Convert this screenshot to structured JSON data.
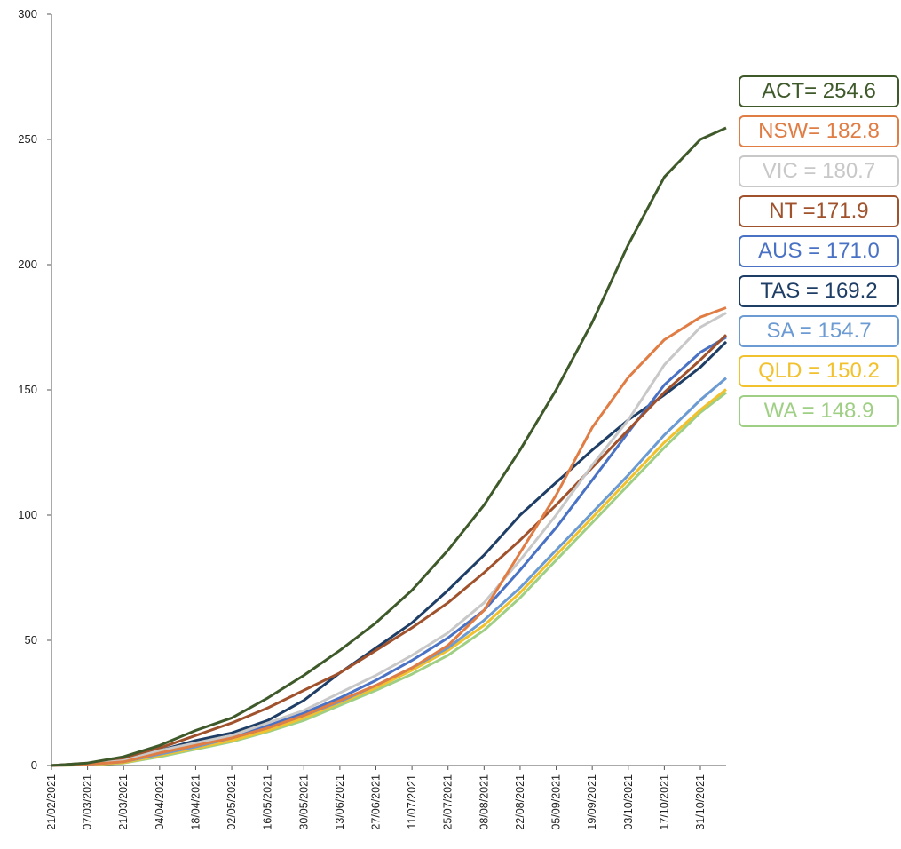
{
  "chart_data": {
    "type": "line",
    "title": "",
    "xlabel": "",
    "ylabel": "",
    "ylim": [
      0,
      300
    ],
    "yticks": [
      "0",
      "50",
      "100",
      "150",
      "200",
      "250",
      "300"
    ],
    "xticks": [
      "21/02/2021",
      "07/03/2021",
      "21/03/2021",
      "04/04/2021",
      "18/04/2021",
      "02/05/2021",
      "16/05/2021",
      "30/05/2021",
      "13/06/2021",
      "27/06/2021",
      "11/07/2021",
      "25/07/2021",
      "08/08/2021",
      "22/08/2021",
      "05/09/2021",
      "19/09/2021",
      "03/10/2021",
      "17/10/2021",
      "31/10/2021"
    ],
    "x_end": "10/11/2021",
    "series": [
      {
        "name": "ACT",
        "label": "ACT= 254.6",
        "color": "#3f5a2a",
        "width": 3,
        "points": [
          [
            "21/02/2021",
            0
          ],
          [
            "07/03/2021",
            1
          ],
          [
            "21/03/2021",
            3.5
          ],
          [
            "04/04/2021",
            8
          ],
          [
            "18/04/2021",
            14
          ],
          [
            "02/05/2021",
            19
          ],
          [
            "16/05/2021",
            27
          ],
          [
            "30/05/2021",
            36
          ],
          [
            "13/06/2021",
            46
          ],
          [
            "27/06/2021",
            57
          ],
          [
            "11/07/2021",
            70
          ],
          [
            "25/07/2021",
            86
          ],
          [
            "08/08/2021",
            104
          ],
          [
            "22/08/2021",
            126
          ],
          [
            "05/09/2021",
            150
          ],
          [
            "19/09/2021",
            177
          ],
          [
            "03/10/2021",
            208
          ],
          [
            "17/10/2021",
            235
          ],
          [
            "31/10/2021",
            250
          ],
          [
            "10/11/2021",
            254.6
          ]
        ]
      },
      {
        "name": "NSW",
        "label": "NSW= 182.8",
        "color": "#e07d45",
        "width": 3,
        "points": [
          [
            "21/02/2021",
            0
          ],
          [
            "07/03/2021",
            0.5
          ],
          [
            "21/03/2021",
            1.5
          ],
          [
            "04/04/2021",
            5
          ],
          [
            "18/04/2021",
            8
          ],
          [
            "02/05/2021",
            11
          ],
          [
            "16/05/2021",
            15
          ],
          [
            "30/05/2021",
            20
          ],
          [
            "13/06/2021",
            26
          ],
          [
            "27/06/2021",
            32
          ],
          [
            "11/07/2021",
            39
          ],
          [
            "25/07/2021",
            48
          ],
          [
            "08/08/2021",
            62
          ],
          [
            "22/08/2021",
            85
          ],
          [
            "05/09/2021",
            108
          ],
          [
            "19/09/2021",
            135
          ],
          [
            "03/10/2021",
            155
          ],
          [
            "17/10/2021",
            170
          ],
          [
            "31/10/2021",
            179
          ],
          [
            "10/11/2021",
            182.8
          ]
        ]
      },
      {
        "name": "VIC",
        "label": "VIC = 180.7",
        "color": "#c8c8c8",
        "width": 3,
        "points": [
          [
            "21/02/2021",
            0
          ],
          [
            "07/03/2021",
            0.5
          ],
          [
            "21/03/2021",
            2
          ],
          [
            "04/04/2021",
            6
          ],
          [
            "18/04/2021",
            9
          ],
          [
            "02/05/2021",
            12
          ],
          [
            "16/05/2021",
            17
          ],
          [
            "30/05/2021",
            22
          ],
          [
            "13/06/2021",
            29
          ],
          [
            "27/06/2021",
            36
          ],
          [
            "11/07/2021",
            44
          ],
          [
            "25/07/2021",
            53
          ],
          [
            "08/08/2021",
            65
          ],
          [
            "22/08/2021",
            82
          ],
          [
            "05/09/2021",
            100
          ],
          [
            "19/09/2021",
            120
          ],
          [
            "03/10/2021",
            138
          ],
          [
            "17/10/2021",
            160
          ],
          [
            "31/10/2021",
            175
          ],
          [
            "10/11/2021",
            180.7
          ]
        ]
      },
      {
        "name": "NT",
        "label": "NT =171.9",
        "color": "#a0522d",
        "width": 3,
        "points": [
          [
            "21/02/2021",
            0
          ],
          [
            "07/03/2021",
            1
          ],
          [
            "21/03/2021",
            3
          ],
          [
            "04/04/2021",
            7
          ],
          [
            "18/04/2021",
            12
          ],
          [
            "02/05/2021",
            17
          ],
          [
            "16/05/2021",
            23
          ],
          [
            "30/05/2021",
            30
          ],
          [
            "13/06/2021",
            37
          ],
          [
            "27/06/2021",
            46
          ],
          [
            "11/07/2021",
            55
          ],
          [
            "25/07/2021",
            65
          ],
          [
            "08/08/2021",
            77
          ],
          [
            "22/08/2021",
            90
          ],
          [
            "05/09/2021",
            104
          ],
          [
            "19/09/2021",
            119
          ],
          [
            "03/10/2021",
            134
          ],
          [
            "17/10/2021",
            149
          ],
          [
            "31/10/2021",
            162
          ],
          [
            "10/11/2021",
            171.9
          ]
        ]
      },
      {
        "name": "AUS",
        "label": "AUS = 171.0",
        "color": "#4a72c4",
        "width": 3,
        "points": [
          [
            "21/02/2021",
            0
          ],
          [
            "07/03/2021",
            0.5
          ],
          [
            "21/03/2021",
            1.8
          ],
          [
            "04/04/2021",
            5
          ],
          [
            "18/04/2021",
            8.5
          ],
          [
            "02/05/2021",
            12
          ],
          [
            "16/05/2021",
            16
          ],
          [
            "30/05/2021",
            21
          ],
          [
            "13/06/2021",
            27
          ],
          [
            "27/06/2021",
            34
          ],
          [
            "11/07/2021",
            42
          ],
          [
            "25/07/2021",
            51
          ],
          [
            "08/08/2021",
            62
          ],
          [
            "22/08/2021",
            78
          ],
          [
            "05/09/2021",
            95
          ],
          [
            "19/09/2021",
            114
          ],
          [
            "03/10/2021",
            133
          ],
          [
            "17/10/2021",
            152
          ],
          [
            "31/10/2021",
            165
          ],
          [
            "10/11/2021",
            171
          ]
        ]
      },
      {
        "name": "TAS",
        "label": "TAS = 169.2",
        "color": "#1f3e66",
        "width": 3,
        "points": [
          [
            "21/02/2021",
            0
          ],
          [
            "07/03/2021",
            0.8
          ],
          [
            "21/03/2021",
            2.5
          ],
          [
            "04/04/2021",
            6
          ],
          [
            "18/04/2021",
            10
          ],
          [
            "02/05/2021",
            13
          ],
          [
            "16/05/2021",
            18
          ],
          [
            "30/05/2021",
            26
          ],
          [
            "13/06/2021",
            37
          ],
          [
            "27/06/2021",
            47
          ],
          [
            "11/07/2021",
            57
          ],
          [
            "25/07/2021",
            70
          ],
          [
            "08/08/2021",
            84
          ],
          [
            "22/08/2021",
            100
          ],
          [
            "05/09/2021",
            113
          ],
          [
            "19/09/2021",
            126
          ],
          [
            "03/10/2021",
            138
          ],
          [
            "17/10/2021",
            148
          ],
          [
            "31/10/2021",
            159
          ],
          [
            "10/11/2021",
            169.2
          ]
        ]
      },
      {
        "name": "SA",
        "label": "SA = 154.7",
        "color": "#6b9bd2",
        "width": 3,
        "points": [
          [
            "21/02/2021",
            0
          ],
          [
            "07/03/2021",
            0.4
          ],
          [
            "21/03/2021",
            1.5
          ],
          [
            "04/04/2021",
            4.5
          ],
          [
            "18/04/2021",
            7.5
          ],
          [
            "02/05/2021",
            11
          ],
          [
            "16/05/2021",
            15
          ],
          [
            "30/05/2021",
            20
          ],
          [
            "13/06/2021",
            25.5
          ],
          [
            "27/06/2021",
            32
          ],
          [
            "11/07/2021",
            39
          ],
          [
            "25/07/2021",
            47
          ],
          [
            "08/08/2021",
            58
          ],
          [
            "22/08/2021",
            71
          ],
          [
            "05/09/2021",
            86
          ],
          [
            "19/09/2021",
            101
          ],
          [
            "03/10/2021",
            116
          ],
          [
            "17/10/2021",
            132
          ],
          [
            "31/10/2021",
            146
          ],
          [
            "10/11/2021",
            154.7
          ]
        ]
      },
      {
        "name": "QLD",
        "label": "QLD = 150.2",
        "color": "#f2c12e",
        "width": 3,
        "points": [
          [
            "21/02/2021",
            0
          ],
          [
            "07/03/2021",
            0.3
          ],
          [
            "21/03/2021",
            1.2
          ],
          [
            "04/04/2021",
            4
          ],
          [
            "18/04/2021",
            7
          ],
          [
            "02/05/2021",
            10
          ],
          [
            "16/05/2021",
            14
          ],
          [
            "30/05/2021",
            19
          ],
          [
            "13/06/2021",
            25
          ],
          [
            "27/06/2021",
            31
          ],
          [
            "11/07/2021",
            38
          ],
          [
            "25/07/2021",
            46
          ],
          [
            "08/08/2021",
            56
          ],
          [
            "22/08/2021",
            69
          ],
          [
            "05/09/2021",
            84
          ],
          [
            "19/09/2021",
            99
          ],
          [
            "03/10/2021",
            114
          ],
          [
            "17/10/2021",
            129
          ],
          [
            "31/10/2021",
            142
          ],
          [
            "10/11/2021",
            150.2
          ]
        ]
      },
      {
        "name": "WA",
        "label": "WA = 148.9",
        "color": "#9fcf84",
        "width": 3,
        "points": [
          [
            "21/02/2021",
            0
          ],
          [
            "07/03/2021",
            0.3
          ],
          [
            "21/03/2021",
            1
          ],
          [
            "04/04/2021",
            3.5
          ],
          [
            "18/04/2021",
            6.5
          ],
          [
            "02/05/2021",
            9.5
          ],
          [
            "16/05/2021",
            13.5
          ],
          [
            "30/05/2021",
            18
          ],
          [
            "13/06/2021",
            24
          ],
          [
            "27/06/2021",
            30
          ],
          [
            "11/07/2021",
            36.5
          ],
          [
            "25/07/2021",
            44
          ],
          [
            "08/08/2021",
            54
          ],
          [
            "22/08/2021",
            67
          ],
          [
            "05/09/2021",
            82
          ],
          [
            "19/09/2021",
            97
          ],
          [
            "03/10/2021",
            112
          ],
          [
            "17/10/2021",
            127
          ],
          [
            "31/10/2021",
            141
          ],
          [
            "10/11/2021",
            148.9
          ]
        ]
      }
    ]
  }
}
